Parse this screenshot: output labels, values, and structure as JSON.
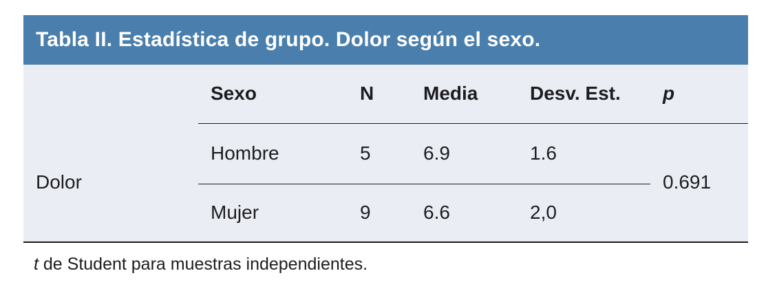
{
  "title": "Tabla II. Estadística de grupo. Dolor según el sexo.",
  "table": {
    "row_group_label": "Dolor",
    "columns": [
      "Sexo",
      "N",
      "Media",
      "Desv. Est.",
      "p"
    ],
    "rows": [
      {
        "sexo": "Hombre",
        "n": "5",
        "media": "6.9",
        "desv": "1.6"
      },
      {
        "sexo": "Mujer",
        "n": "9",
        "media": "6.6",
        "desv": "2,0"
      }
    ],
    "p_value": "0.691"
  },
  "footnote": {
    "italic": "t",
    "text": " de Student para muestras independientes."
  },
  "colors": {
    "header_bg": "#4a7fad",
    "body_bg": "#eaedf4",
    "line": "#1a1a1a",
    "text": "#1d1d1f",
    "title_text": "#ffffff"
  }
}
